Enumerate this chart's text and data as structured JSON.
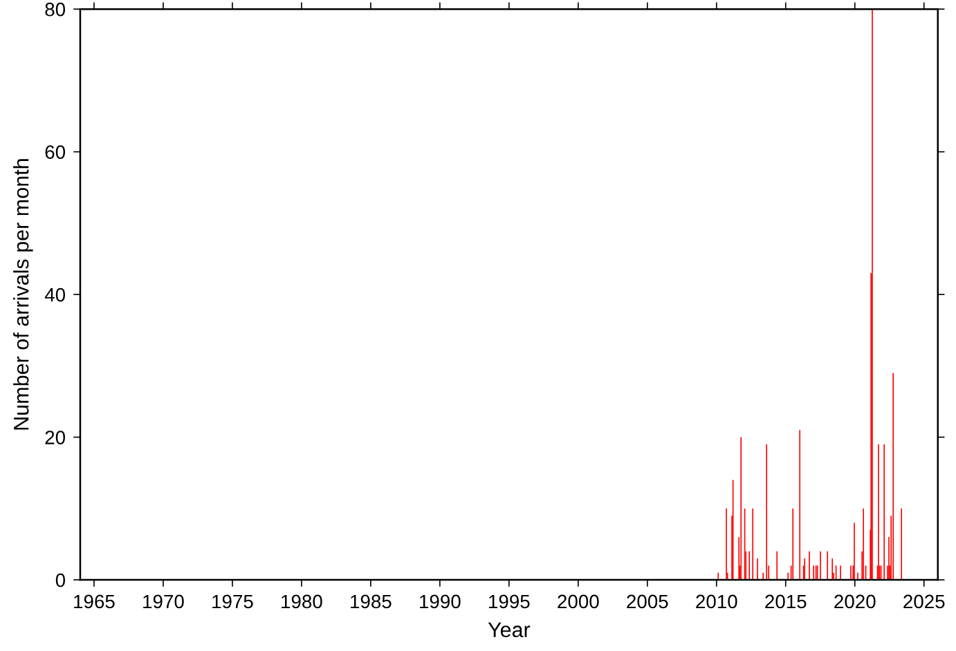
{
  "chart_data": {
    "type": "bar",
    "xlabel": "Year",
    "ylabel": "Number of arrivals per month",
    "x": [
      2010.08,
      2010.67,
      2010.75,
      2011.07,
      2011.15,
      2011.58,
      2011.65,
      2011.73,
      2012.0,
      2012.08,
      2012.33,
      2012.58,
      2012.92,
      2013.33,
      2013.58,
      2013.73,
      2014.33,
      2015.13,
      2015.35,
      2015.48,
      2015.98,
      2016.25,
      2016.33,
      2016.67,
      2016.98,
      2017.15,
      2017.25,
      2017.47,
      2017.98,
      2018.33,
      2018.42,
      2018.6,
      2018.92,
      2019.67,
      2019.83,
      2019.92,
      2020.17,
      2020.48,
      2020.58,
      2020.75,
      2021.08,
      2021.13,
      2021.22,
      2021.6,
      2021.67,
      2021.75,
      2021.85,
      2022.08,
      2022.33,
      2022.42,
      2022.5,
      2022.58,
      2022.73,
      2023.33
    ],
    "series": [
      {
        "color": "#ff0000",
        "values": [
          1,
          10,
          1,
          9,
          14,
          6,
          2,
          20,
          10,
          4,
          4,
          10,
          3,
          1,
          19,
          2,
          4,
          1,
          2,
          10,
          21,
          2,
          3,
          4,
          2,
          2,
          2,
          4,
          4,
          3,
          1,
          2,
          2,
          2,
          2,
          8,
          1,
          4,
          10,
          2,
          7,
          43,
          80,
          2,
          19,
          2,
          2,
          19,
          2,
          6,
          2,
          9,
          29,
          10
        ]
      }
    ],
    "xlim": [
      1964,
      2026
    ],
    "xticks": [
      1965,
      1970,
      1975,
      1980,
      1985,
      1990,
      1995,
      2000,
      2005,
      2010,
      2015,
      2020,
      2025
    ],
    "ylim": [
      0,
      80
    ],
    "yticks": [
      0,
      20,
      40,
      60,
      80
    ],
    "grid": false,
    "legend": false
  }
}
